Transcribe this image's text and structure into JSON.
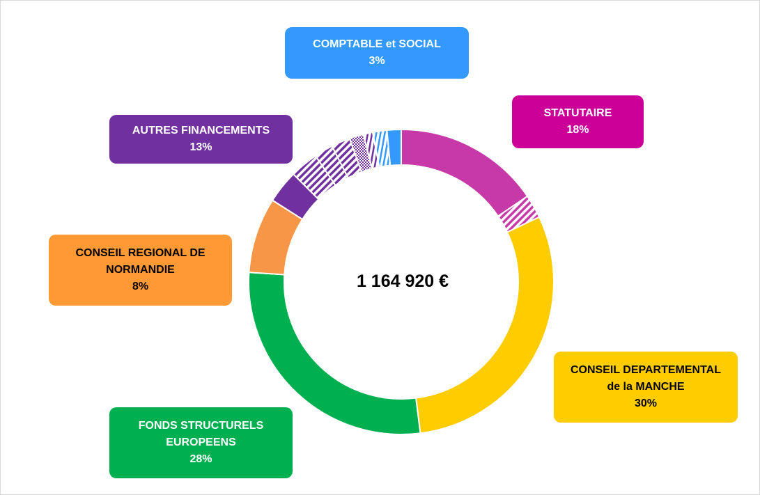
{
  "colors": {
    "comptable": "#3399ff",
    "statutaire": "#c739a9",
    "statutaire_box": "#cc0099",
    "departemental": "#ffcc00",
    "fonds": "#00b050",
    "regional": "#f79646",
    "regional_box": "#ff9933",
    "autres": "#7030a0",
    "text_dark": "#000000",
    "text_light": "#ffffff"
  },
  "chart_data": {
    "type": "donut",
    "center_label": "1 164 920 €",
    "slices": [
      {
        "label": "STATUTAIRE",
        "value": 15.5,
        "color": "#c739a9",
        "pattern": "none"
      },
      {
        "label": "STATUTAIRE",
        "value": 2.5,
        "color": "#c739a9",
        "pattern": "hatch"
      },
      {
        "label": "CONSEIL DEPARTEMENTAL de la MANCHE",
        "value": 30,
        "color": "#ffcc00",
        "pattern": "none"
      },
      {
        "label": "FONDS STRUCTURELS EUROPEENS",
        "value": 28,
        "color": "#00b050",
        "pattern": "none"
      },
      {
        "label": "CONSEIL REGIONAL DE NORMANDIE",
        "value": 8,
        "color": "#f79646",
        "pattern": "none"
      },
      {
        "label": "AUTRES FINANCEMENTS",
        "value": 3.5,
        "color": "#7030a0",
        "pattern": "none"
      },
      {
        "label": "AUTRES FINANCEMENTS",
        "value": 3,
        "color": "#7030a0",
        "pattern": "hatch"
      },
      {
        "label": "AUTRES FINANCEMENTS",
        "value": 2,
        "color": "#7030a0",
        "pattern": "hatch"
      },
      {
        "label": "AUTRES FINANCEMENTS",
        "value": 2,
        "color": "#7030a0",
        "pattern": "hatch"
      },
      {
        "label": "AUTRES FINANCEMENTS",
        "value": 1.5,
        "color": "#7030a0",
        "pattern": "dots"
      },
      {
        "label": "AUTRES FINANCEMENTS",
        "value": 1,
        "color": "#7030a0",
        "pattern": "lines"
      },
      {
        "label": "COMPTABLE et SOCIAL",
        "value": 1.5,
        "color": "#3399ff",
        "pattern": "lines"
      },
      {
        "label": "COMPTABLE et SOCIAL",
        "value": 1.5,
        "color": "#3399ff",
        "pattern": "none"
      }
    ],
    "categories": [
      {
        "label": "COMPTABLE et SOCIAL",
        "percent": "3%"
      },
      {
        "label": "STATUTAIRE",
        "percent": "18%"
      },
      {
        "label": "CONSEIL DEPARTEMENTAL de la MANCHE",
        "percent": "30%"
      },
      {
        "label": "FONDS STRUCTURELS EUROPEENS",
        "percent": "28%"
      },
      {
        "label": "CONSEIL REGIONAL DE NORMANDIE",
        "percent": "8%"
      },
      {
        "label": "AUTRES FINANCEMENTS",
        "percent": "13%"
      }
    ]
  },
  "labels": {
    "comptable": {
      "line1": "COMPTABLE et SOCIAL",
      "percent": "3%"
    },
    "statutaire": {
      "line1": "STATUTAIRE",
      "percent": "18%"
    },
    "autres": {
      "line1": "AUTRES FINANCEMENTS",
      "percent": "13%"
    },
    "regional": {
      "line1": "CONSEIL REGIONAL DE",
      "line2": "NORMANDIE",
      "percent": "8%"
    },
    "departemental": {
      "line1": "CONSEIL DEPARTEMENTAL",
      "line2": "de la MANCHE",
      "percent": "30%"
    },
    "fonds": {
      "line1": "FONDS STRUCTURELS",
      "line2": "EUROPEENS",
      "percent": "28%"
    }
  }
}
